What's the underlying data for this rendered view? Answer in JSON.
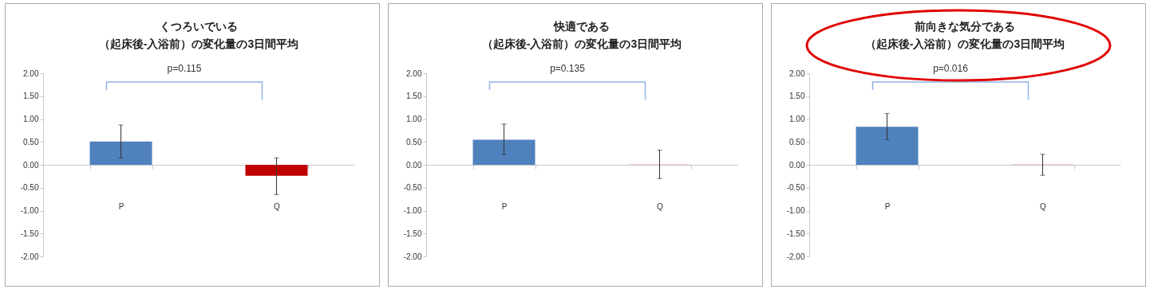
{
  "chart_data": [
    {
      "type": "bar",
      "title": "くつろいでいる",
      "subtitle": "（起床後-入浴前）の変化量の3日間平均",
      "categories": [
        "P",
        "Q"
      ],
      "values": [
        0.51,
        -0.24
      ],
      "colors": [
        "#4f81bd",
        "#c00000"
      ],
      "errors": [
        [
          0.15,
          0.87
        ],
        [
          -0.65,
          0.15
        ]
      ],
      "ylim": [
        -2,
        2
      ],
      "yticks": [
        {
          "value": -2,
          "label": "-2.00"
        },
        {
          "value": -1.5,
          "label": "-1.50"
        },
        {
          "value": -1,
          "label": "-1.00"
        },
        {
          "value": -0.5,
          "label": "-0.50"
        },
        {
          "value": 0,
          "label": "0.00"
        },
        {
          "value": 0.5,
          "label": "0.50"
        },
        {
          "value": 1,
          "label": "1.00"
        },
        {
          "value": 1.5,
          "label": "1.50"
        },
        {
          "value": 2,
          "label": "2.00"
        }
      ],
      "annotations": [
        "p=0.115"
      ]
    },
    {
      "type": "bar",
      "title": "快適である",
      "subtitle": "（起床後-入浴前）の変化量の3日間平均",
      "categories": [
        "P",
        "Q"
      ],
      "values": [
        0.55,
        0.01
      ],
      "colors": [
        "#4f81bd",
        "#e8a0a0"
      ],
      "errors": [
        [
          0.23,
          0.89
        ],
        [
          -0.3,
          0.32
        ]
      ],
      "ylim": [
        -2,
        2
      ],
      "yticks": [
        {
          "value": -2,
          "label": "-2.00"
        },
        {
          "value": -1.5,
          "label": "-1.50"
        },
        {
          "value": -1,
          "label": "-1.00"
        },
        {
          "value": -0.5,
          "label": "-0.50"
        },
        {
          "value": 0,
          "label": "0.00"
        },
        {
          "value": 0.5,
          "label": "0.50"
        },
        {
          "value": 1,
          "label": "1.00"
        },
        {
          "value": 1.5,
          "label": "1.50"
        },
        {
          "value": 2,
          "label": "2.00"
        }
      ],
      "annotations": [
        "p=0.135"
      ]
    },
    {
      "type": "bar",
      "title": "前向きな気分である",
      "subtitle": "（起床後-入浴前）の変化量の3日間平均",
      "categories": [
        "P",
        "Q"
      ],
      "values": [
        0.83,
        0.01
      ],
      "colors": [
        "#4f81bd",
        "#e8a0a0"
      ],
      "errors": [
        [
          0.55,
          1.12
        ],
        [
          -0.23,
          0.23
        ]
      ],
      "ylim": [
        -2,
        2
      ],
      "yticks": [
        {
          "value": -2,
          "label": "-2.00"
        },
        {
          "value": -1.5,
          "label": "-1.50"
        },
        {
          "value": -1,
          "label": "-1.00"
        },
        {
          "value": -0.5,
          "label": "-0.50"
        },
        {
          "value": 0,
          "label": "0.00"
        },
        {
          "value": 0.5,
          "label": "0.50"
        },
        {
          "value": 1,
          "label": "1.00"
        },
        {
          "value": 1.5,
          "label": "1.50"
        },
        {
          "value": 2,
          "label": "2.00"
        }
      ],
      "annotations": [
        "p=0.016"
      ]
    }
  ]
}
